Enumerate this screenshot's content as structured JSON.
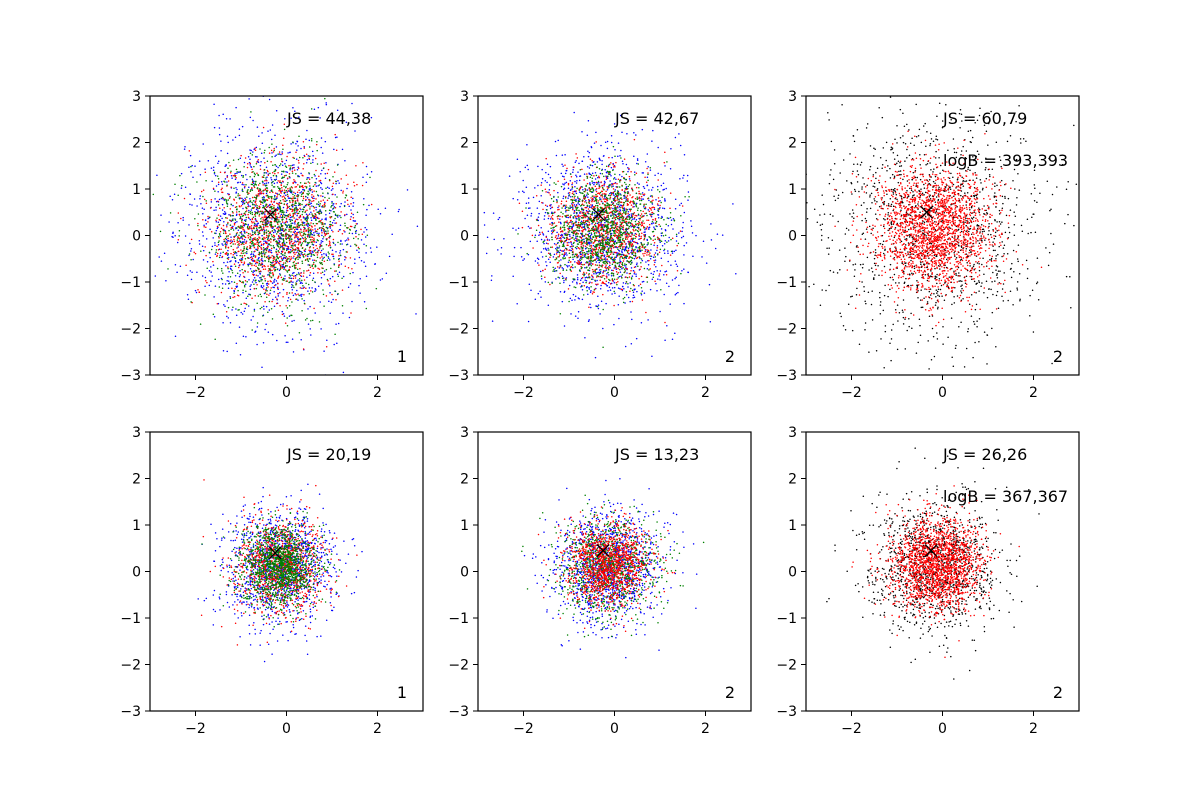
{
  "chart_data": [
    {
      "type": "scatter",
      "xlim": [
        -3,
        3
      ],
      "ylim": [
        -3,
        3
      ],
      "xticks": [
        "−2",
        "0",
        "2"
      ],
      "yticks": [
        "−3",
        "−2",
        "−1",
        "0",
        "1",
        "2",
        "3"
      ],
      "annotations": [
        "JS = 44,38"
      ],
      "corner_label": "1",
      "marker": {
        "x": -0.35,
        "y": 0.45
      },
      "series": [
        {
          "color": "#0000ff",
          "spread": 1.05,
          "count": 1300
        },
        {
          "color": "#ff0000",
          "spread": 0.75,
          "count": 1100
        },
        {
          "color": "#008000",
          "spread": 0.75,
          "count": 1100
        }
      ],
      "grid": false
    },
    {
      "type": "scatter",
      "xlim": [
        -3,
        3
      ],
      "ylim": [
        -3,
        3
      ],
      "xticks": [
        "−2",
        "0",
        "2"
      ],
      "yticks": [
        "−3",
        "−2",
        "−1",
        "0",
        "1",
        "2",
        "3"
      ],
      "annotations": [
        "JS = 42,67"
      ],
      "corner_label": "2",
      "marker": {
        "x": -0.35,
        "y": 0.45
      },
      "series": [
        {
          "color": "#0000ff",
          "spread": 0.9,
          "count": 1300
        },
        {
          "color": "#ff0000",
          "spread": 0.6,
          "count": 1100
        },
        {
          "color": "#008000",
          "spread": 0.6,
          "count": 1100
        }
      ],
      "grid": false
    },
    {
      "type": "scatter",
      "xlim": [
        -3,
        3
      ],
      "ylim": [
        -3,
        3
      ],
      "xticks": [
        "−2",
        "0",
        "2"
      ],
      "yticks": [
        "−3",
        "−2",
        "−1",
        "0",
        "1",
        "2",
        "3"
      ],
      "annotations": [
        "JS = 60,79",
        "logB = 393,393"
      ],
      "corner_label": "2",
      "marker": {
        "x": -0.35,
        "y": 0.5
      },
      "series": [
        {
          "color": "#000000",
          "spread": 1.2,
          "count": 1300
        },
        {
          "color": "#ff0000",
          "spread": 0.65,
          "count": 2000
        }
      ],
      "grid": false
    },
    {
      "type": "scatter",
      "xlim": [
        -3,
        3
      ],
      "ylim": [
        -3,
        3
      ],
      "xticks": [
        "−2",
        "0",
        "2"
      ],
      "yticks": [
        "−3",
        "−2",
        "−1",
        "0",
        "1",
        "2",
        "3"
      ],
      "annotations": [
        "JS = 20,19"
      ],
      "corner_label": "1",
      "marker": {
        "x": -0.25,
        "y": 0.4
      },
      "series": [
        {
          "color": "#0000ff",
          "spread": 0.6,
          "count": 1200
        },
        {
          "color": "#ff0000",
          "spread": 0.5,
          "count": 1000
        },
        {
          "color": "#008000",
          "spread": 0.42,
          "count": 1300
        }
      ],
      "grid": false
    },
    {
      "type": "scatter",
      "xlim": [
        -3,
        3
      ],
      "ylim": [
        -3,
        3
      ],
      "xticks": [
        "−2",
        "0",
        "2"
      ],
      "yticks": [
        "−3",
        "−2",
        "−1",
        "0",
        "1",
        "2",
        "3"
      ],
      "annotations": [
        "JS = 13,23"
      ],
      "corner_label": "2",
      "marker": {
        "x": -0.25,
        "y": 0.45
      },
      "series": [
        {
          "color": "#0000ff",
          "spread": 0.6,
          "count": 1200
        },
        {
          "color": "#008000",
          "spread": 0.55,
          "count": 1000
        },
        {
          "color": "#ff0000",
          "spread": 0.45,
          "count": 1200
        }
      ],
      "grid": false
    },
    {
      "type": "scatter",
      "xlim": [
        -3,
        3
      ],
      "ylim": [
        -3,
        3
      ],
      "xticks": [
        "−2",
        "0",
        "2"
      ],
      "yticks": [
        "−3",
        "−2",
        "−1",
        "0",
        "1",
        "2",
        "3"
      ],
      "annotations": [
        "JS = 26,26",
        "logB = 367,367"
      ],
      "corner_label": "2",
      "marker": {
        "x": -0.25,
        "y": 0.45
      },
      "series": [
        {
          "color": "#000000",
          "spread": 0.7,
          "count": 1200
        },
        {
          "color": "#ff0000",
          "spread": 0.5,
          "count": 1800
        }
      ],
      "grid": false
    }
  ]
}
